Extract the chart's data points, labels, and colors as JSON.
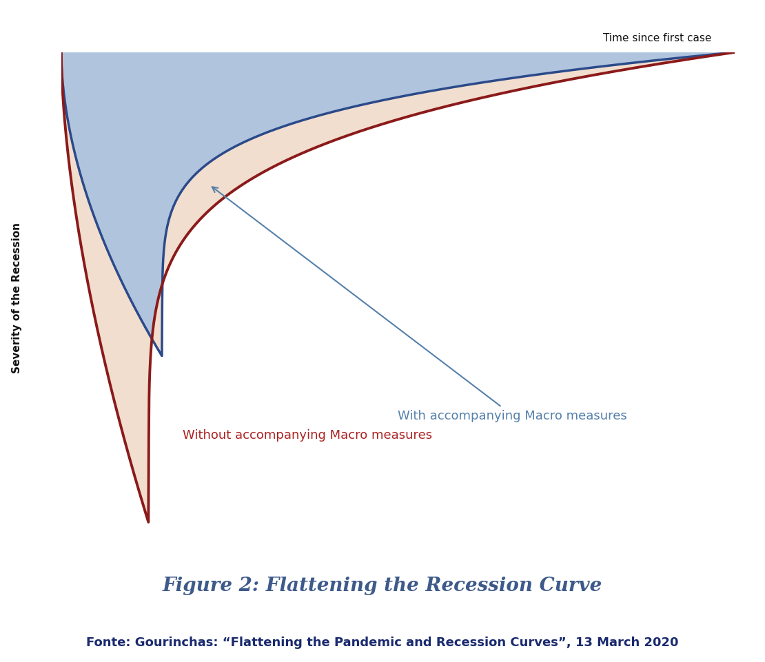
{
  "title": "Figure 2: Flattening the Recession Curve",
  "source_text": "Fonte: Gourinchas: “Flattening the Pandemic and Recession Curves”, 13 March 2020",
  "xlabel": "Time since first case",
  "ylabel": "Severity of the Recession",
  "with_macro_label": "With accompanying Macro measures",
  "without_macro_label": "Without accompanying Macro measures",
  "blue_fill_color": "#b0c4de",
  "peach_fill_color": "#f2dece",
  "blue_line_color": "#2b4a8a",
  "red_line_color": "#8b1a1a",
  "title_color": "#3d5a8a",
  "source_color": "#1a2a6e",
  "label_blue_color": "#5580aa",
  "label_red_color": "#aa2222",
  "axis_color": "#111111",
  "background_color": "#ffffff",
  "ylabel_fontsize": 11,
  "xlabel_fontsize": 11,
  "label_fontsize": 13,
  "title_fontsize": 20,
  "source_fontsize": 13
}
